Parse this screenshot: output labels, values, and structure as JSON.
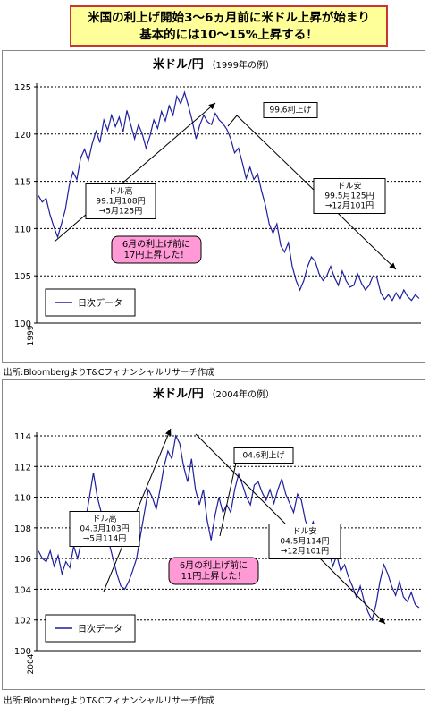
{
  "headline": {
    "line1": "米国の利上げ開始3～6ヵ月前に米ドル上昇が始まり",
    "line2": "基本的には10～15%上昇する！"
  },
  "colors": {
    "line": "#1f1f9e",
    "headline_bg": "#ffff99",
    "headline_border": "#cc3333",
    "callout_pink": "#ff9ad6"
  },
  "chart_data": [
    {
      "type": "line",
      "title": "米ドル/円",
      "subtitle": "（1999年の例）",
      "x_tick_label": "1999",
      "ylim": [
        100,
        125
      ],
      "yticks": [
        100,
        105,
        110,
        115,
        120,
        125
      ],
      "legend": "日次データ",
      "legend_position": "bottom-left",
      "grid": true,
      "series": [
        {
          "values": [
            113.5,
            112.8,
            113.2,
            111.5,
            110.2,
            109.1,
            110.5,
            112.0,
            114.5,
            116.0,
            115.2,
            117.5,
            118.4,
            117.2,
            119.0,
            120.3,
            119.1,
            121.5,
            120.4,
            122.0,
            120.8,
            121.8,
            120.2,
            122.5,
            121.0,
            119.5,
            121.0,
            120.0,
            118.5,
            119.8,
            121.5,
            120.6,
            122.4,
            121.4,
            123.0,
            122.0,
            124.0,
            123.2,
            124.4,
            123.0,
            121.4,
            119.5,
            121.0,
            122.0,
            121.3,
            121.0,
            122.2,
            121.5,
            121.1,
            120.5,
            119.5,
            118.0,
            118.5,
            117.0,
            115.3,
            116.5,
            115.2,
            115.8,
            114.0,
            112.5,
            110.5,
            109.5,
            110.5,
            108.2,
            107.5,
            108.5,
            106.0,
            104.5,
            103.5,
            104.5,
            106.0,
            107.0,
            106.5,
            105.2,
            104.5,
            105.0,
            106.0,
            104.8,
            104.0,
            105.5,
            104.5,
            103.8,
            104.0,
            105.2,
            104.2,
            103.5,
            104.0,
            105.0,
            104.8,
            103.2,
            102.5,
            103.0,
            102.4,
            103.2,
            102.5,
            103.5,
            102.8,
            102.4,
            103.0,
            102.6
          ]
        }
      ],
      "annotations": [
        {
          "text": "99.6利上げ"
        },
        {
          "text": [
            "ドル高",
            "99.1月108円",
            "→5月125円"
          ]
        },
        {
          "text": [
            "ドル安",
            "99.5月125円",
            "→12月101円"
          ]
        },
        {
          "text": [
            "6月の利上げ前に",
            "17円上昇した！"
          ]
        }
      ]
    },
    {
      "type": "line",
      "title": "米ドル/円",
      "subtitle": "（2004年の例）",
      "x_tick_label": "2004",
      "ylim": [
        100,
        114
      ],
      "yticks": [
        100,
        102,
        104,
        106,
        108,
        110,
        112,
        114
      ],
      "legend": "日次データ",
      "legend_position": "bottom-left",
      "grid": true,
      "series": [
        {
          "values": [
            106.5,
            106.0,
            105.8,
            106.5,
            105.5,
            106.2,
            105.0,
            105.8,
            105.4,
            106.8,
            106.0,
            107.2,
            108.5,
            110.0,
            111.6,
            110.0,
            109.0,
            108.0,
            107.0,
            106.0,
            105.0,
            104.2,
            104.0,
            104.5,
            105.2,
            106.0,
            107.5,
            109.0,
            110.5,
            110.0,
            109.2,
            110.5,
            112.0,
            113.0,
            112.5,
            114.0,
            113.5,
            112.0,
            111.0,
            112.5,
            110.5,
            109.5,
            110.5,
            108.5,
            107.2,
            108.8,
            110.0,
            109.0,
            109.5,
            109.0,
            110.5,
            111.5,
            110.8,
            110.0,
            109.5,
            110.8,
            111.0,
            110.3,
            109.8,
            110.5,
            109.6,
            110.5,
            111.2,
            110.2,
            109.6,
            109.0,
            110.2,
            109.8,
            108.5,
            107.8,
            108.4,
            107.5,
            108.0,
            107.2,
            106.5,
            105.5,
            106.2,
            105.2,
            105.6,
            104.8,
            104.2,
            103.5,
            104.2,
            103.2,
            102.5,
            102.0,
            103.0,
            104.5,
            105.6,
            105.0,
            104.2,
            103.6,
            104.5,
            103.5,
            103.2,
            103.8,
            103.0,
            102.8
          ]
        }
      ],
      "annotations": [
        {
          "text": "04.6利上げ"
        },
        {
          "text": [
            "ドル高",
            "04.3月103円",
            "→5月114円"
          ]
        },
        {
          "text": [
            "ドル安",
            "04.5月114円",
            "→12月101円"
          ]
        },
        {
          "text": [
            "6月の利上げ前に",
            "11円上昇した！"
          ]
        }
      ]
    }
  ],
  "source_note": "出所:BloombergよりT&Cフィナンシャルリサーチ作成"
}
